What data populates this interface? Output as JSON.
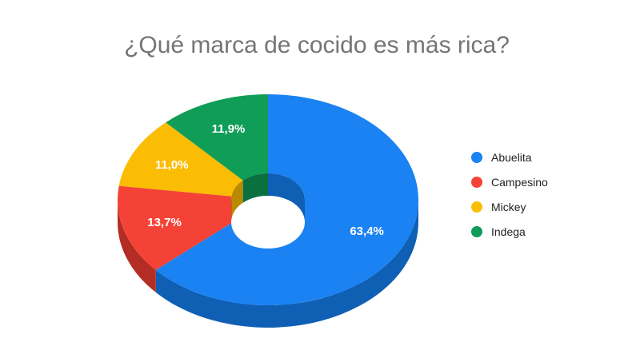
{
  "chart_data": {
    "type": "pie",
    "style": "3d-donut",
    "title": "¿Qué marca de cocido es más rica?",
    "legend_position": "right",
    "series": [
      {
        "name": "Abuelita",
        "value": 63.4,
        "label": "63,4%",
        "color": "#1a82f2",
        "side_color": "#0f5fb5"
      },
      {
        "name": "Campesino",
        "value": 13.7,
        "label": "13,7%",
        "color": "#f44336",
        "side_color": "#b32d24"
      },
      {
        "name": "Mickey",
        "value": 11.0,
        "label": "11,0%",
        "color": "#fbbc04",
        "side_color": "#b98900"
      },
      {
        "name": "Indega",
        "value": 11.9,
        "label": "11,9%",
        "color": "#0f9d58",
        "side_color": "#0a7040"
      }
    ]
  }
}
